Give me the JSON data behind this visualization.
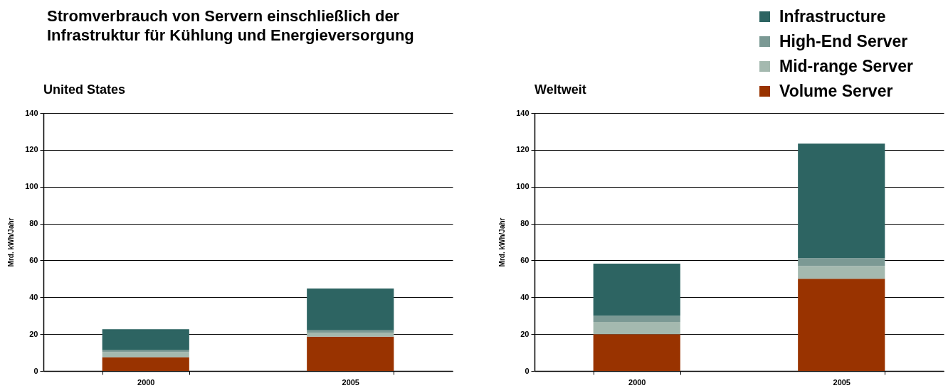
{
  "chart_data": [
    {
      "type": "bar",
      "title": "Stromverbrauch von Servern einschließlich der\nInfrastruktur für Kühlung und Energieversorgung",
      "subtitle": "United States",
      "ylabel": "Mrd. kWh/Jahr",
      "categories": [
        "2000",
        "2005"
      ],
      "stacked": true,
      "series": [
        {
          "name": "Volume Server",
          "color": "#993300",
          "values": [
            7.4,
            18.6
          ]
        },
        {
          "name": "Mid-range Server",
          "color": "#a4b9af",
          "values": [
            2.9,
            2.2
          ]
        },
        {
          "name": "High-End Server",
          "color": "#7b9994",
          "values": [
            1,
            1.3
          ]
        },
        {
          "name": "Infrastructure",
          "color": "#2d6462",
          "values": [
            11.4,
            22.6
          ]
        }
      ],
      "ylim": [
        0,
        140
      ],
      "yticks": [
        0,
        20,
        40,
        60,
        80,
        100,
        120,
        140
      ],
      "grid": "y",
      "legend": "top right"
    },
    {
      "type": "bar",
      "title": "Weltweit",
      "ylabel": "Mrd. kWh/Jahr",
      "categories": [
        "2000",
        "2005"
      ],
      "stacked": true,
      "series": [
        {
          "name": "Volume Server",
          "color": "#993300",
          "values": [
            20,
            50
          ]
        },
        {
          "name": "Mid-range Server",
          "color": "#a4b9af",
          "values": [
            6.6,
            7
          ]
        },
        {
          "name": "High-End Server",
          "color": "#7b9994",
          "values": [
            3.4,
            4.2
          ]
        },
        {
          "name": "Infrastructure",
          "color": "#2d6462",
          "values": [
            28.2,
            62.2
          ]
        }
      ],
      "ylim": [
        0,
        140
      ],
      "yticks": [
        0,
        20,
        40,
        60,
        80,
        100,
        120,
        140
      ],
      "grid": "y",
      "legend": "top right"
    }
  ]
}
